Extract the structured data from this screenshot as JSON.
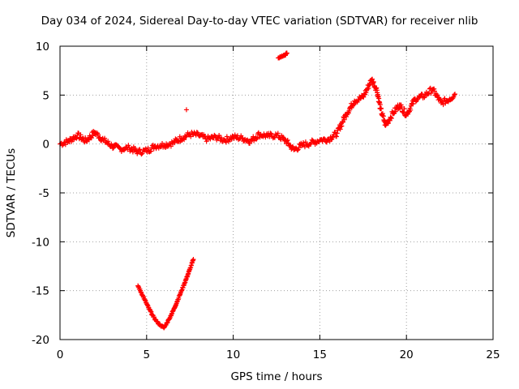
{
  "chart_data": {
    "type": "scatter",
    "title": "Day 034 of 2024, Sidereal Day-to-day VTEC variation (SDTVAR) for receiver nlib",
    "xlabel": "GPS time / hours",
    "ylabel": "SDTVAR / TECUs",
    "xlim": [
      0,
      25
    ],
    "ylim": [
      -20,
      10
    ],
    "xticks": [
      0,
      5,
      10,
      15,
      20,
      25
    ],
    "yticks": [
      -20,
      -15,
      -10,
      -5,
      0,
      5,
      10
    ],
    "grid": true,
    "marker": "+",
    "color": "#ff0000",
    "series": [
      {
        "name": "main",
        "points": [
          [
            0.0,
            0.0
          ],
          [
            0.5,
            0.3
          ],
          [
            1.0,
            0.9
          ],
          [
            1.5,
            0.3
          ],
          [
            2.0,
            1.2
          ],
          [
            2.5,
            0.4
          ],
          [
            3.0,
            -0.2
          ],
          [
            3.5,
            -0.5
          ],
          [
            4.0,
            -0.4
          ],
          [
            4.5,
            -0.8
          ],
          [
            5.0,
            -0.7
          ],
          [
            5.5,
            -0.2
          ],
          [
            6.0,
            -0.1
          ],
          [
            6.5,
            0.1
          ],
          [
            7.0,
            0.6
          ],
          [
            7.5,
            1.0
          ],
          [
            8.0,
            0.9
          ],
          [
            8.5,
            0.5
          ],
          [
            9.0,
            0.7
          ],
          [
            9.5,
            0.4
          ],
          [
            10.0,
            0.7
          ],
          [
            10.5,
            0.6
          ],
          [
            11.0,
            0.3
          ],
          [
            11.5,
            1.0
          ],
          [
            12.0,
            0.8
          ],
          [
            12.5,
            0.9
          ],
          [
            13.0,
            0.4
          ],
          [
            13.5,
            -0.6
          ],
          [
            14.0,
            -0.1
          ],
          [
            14.5,
            0.1
          ],
          [
            15.0,
            0.4
          ],
          [
            15.5,
            0.5
          ],
          [
            16.0,
            1.1
          ],
          [
            16.5,
            3.0
          ],
          [
            17.0,
            4.4
          ],
          [
            17.5,
            4.8
          ],
          [
            18.0,
            6.6
          ],
          [
            18.3,
            5.5
          ],
          [
            18.5,
            3.6
          ],
          [
            18.8,
            1.9
          ],
          [
            19.2,
            3.1
          ],
          [
            19.6,
            4.0
          ],
          [
            20.0,
            3.0
          ],
          [
            20.5,
            4.6
          ],
          [
            21.0,
            4.9
          ],
          [
            21.5,
            5.6
          ],
          [
            22.0,
            4.2
          ],
          [
            22.5,
            4.6
          ],
          [
            22.8,
            5.1
          ]
        ]
      },
      {
        "name": "segment-high",
        "points": [
          [
            12.6,
            8.8
          ],
          [
            12.8,
            9.0
          ],
          [
            13.0,
            9.1
          ],
          [
            13.1,
            9.3
          ]
        ]
      },
      {
        "name": "segment-low",
        "points": [
          [
            4.5,
            -14.5
          ],
          [
            4.8,
            -15.6
          ],
          [
            5.1,
            -16.7
          ],
          [
            5.4,
            -17.7
          ],
          [
            5.7,
            -18.4
          ],
          [
            6.0,
            -18.8
          ],
          [
            6.3,
            -17.9
          ],
          [
            6.6,
            -16.8
          ],
          [
            6.9,
            -15.5
          ],
          [
            7.2,
            -14.2
          ],
          [
            7.5,
            -12.8
          ],
          [
            7.7,
            -11.8
          ]
        ]
      }
    ],
    "annotations": [
      {
        "x": 7.3,
        "y": 3.5,
        "label": "+"
      }
    ]
  }
}
